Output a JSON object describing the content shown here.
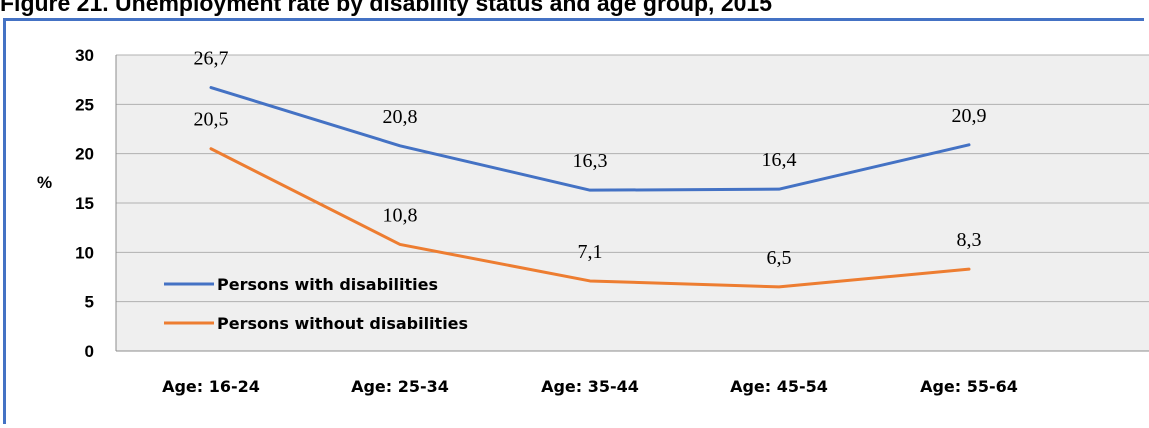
{
  "title": "Figure 21. Unemployment rate by disability status and age group, 2015",
  "chart_data": {
    "type": "line",
    "title": "Figure 21. Unemployment rate by disability status and age group, 2015",
    "xlabel": "",
    "ylabel": "%",
    "categories": [
      "Age: 16-24",
      "Age: 25-34",
      "Age: 35-44",
      "Age: 45-54",
      "Age: 55-64"
    ],
    "ylim": [
      0,
      30
    ],
    "yticks": [
      "0",
      "5",
      "10",
      "15",
      "20",
      "25",
      "30"
    ],
    "grid": true,
    "legend_position": "bottom-left",
    "series": [
      {
        "name": "Persons with disabilities",
        "color": "#4472c4",
        "values": [
          26.7,
          20.8,
          16.3,
          16.4,
          20.9
        ],
        "labels": [
          "26,7",
          "20,8",
          "16,3",
          "16,4",
          "20,9"
        ]
      },
      {
        "name": "Persons without disabilities",
        "color": "#ed7d31",
        "values": [
          20.5,
          10.8,
          7.1,
          6.5,
          8.3
        ],
        "labels": [
          "20,5",
          "10,8",
          "7,1",
          "6,5",
          "8,3"
        ]
      }
    ]
  }
}
